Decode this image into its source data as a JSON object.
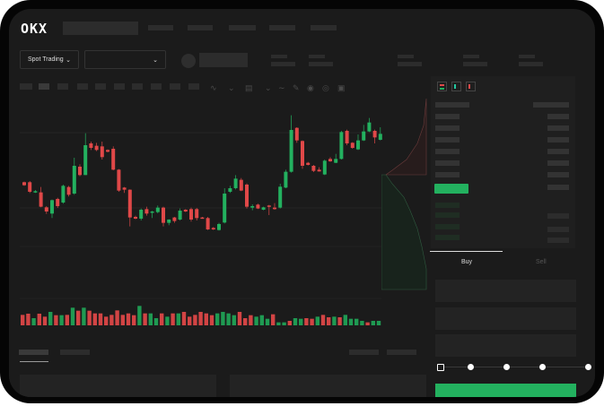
{
  "header": {
    "logo": "OKX"
  },
  "market_selector": {
    "label": "Spot Trading",
    "chevron": "chevron-down-icon",
    "pair_chevron": "chevron-down-icon"
  },
  "order_form": {
    "tabs": [
      "Buy",
      "Sell"
    ],
    "active_tab": "Buy",
    "leverage_slider_value": 0
  },
  "colors": {
    "up": "#23b15f",
    "down": "#e04848",
    "background": "#1b1b1b",
    "buy_button": "#23b15f"
  },
  "toolbar_icons": [
    "indicator-icon",
    "chevron-down-icon",
    "indicator-icon",
    "chevron-down-icon",
    "line-icon",
    "ruler-icon",
    "camera-icon",
    "settings-icon",
    "fullscreen-icon"
  ],
  "orderbook_view_icons": [
    "both-sides-icon",
    "bids-only-icon",
    "asks-only-icon"
  ],
  "chart_data": {
    "type": "candlestick",
    "candles_ochl": [
      [
        45,
        42.5,
        45.5,
        42
      ],
      [
        45,
        37,
        46,
        36
      ],
      [
        36.5,
        37.5,
        38.5,
        36
      ],
      [
        36.5,
        24.5,
        41,
        24
      ],
      [
        24,
        20.5,
        25,
        18.5
      ],
      [
        18.75,
        30,
        30.5,
        15
      ],
      [
        31,
        25,
        32,
        23.5
      ],
      [
        28,
        42,
        43,
        27
      ],
      [
        41,
        34.5,
        42,
        33
      ],
      [
        35.5,
        58.75,
        65.5,
        34.5
      ],
      [
        58,
        51,
        60,
        50
      ],
      [
        51,
        76,
        86,
        51
      ],
      [
        77.5,
        73.75,
        79,
        72
      ],
      [
        75.5,
        72,
        78,
        71
      ],
      [
        75,
        66,
        79,
        64
      ],
      [
        72,
        70.5,
        72.5,
        70
      ],
      [
        73,
        55.5,
        75,
        55
      ],
      [
        55.5,
        38,
        56,
        37
      ],
      [
        40.5,
        38.75,
        41,
        36
      ],
      [
        38.75,
        15.5,
        39,
        8
      ],
      [
        16,
        14.5,
        17,
        14
      ],
      [
        14.5,
        22,
        23,
        13
      ],
      [
        22.5,
        18.75,
        24.5,
        17
      ],
      [
        19.5,
        20.5,
        21,
        15
      ],
      [
        20,
        23.75,
        25.5,
        19
      ],
      [
        23.75,
        11,
        24.5,
        8
      ],
      [
        11,
        13.75,
        14,
        9
      ],
      [
        15.5,
        12.5,
        16,
        11
      ],
      [
        13.75,
        21.25,
        23,
        13
      ],
      [
        22,
        20.5,
        22.5,
        20
      ],
      [
        22.5,
        13.75,
        23.75,
        12
      ],
      [
        22.5,
        15,
        23.5,
        13
      ],
      [
        15.5,
        15,
        16,
        15
      ],
      [
        15,
        5.5,
        16,
        5
      ],
      [
        6.75,
        5.5,
        7.5,
        5
      ],
      [
        5,
        10,
        11,
        4.5
      ],
      [
        11.25,
        35.5,
        40,
        10.5
      ],
      [
        37,
        40,
        42,
        36
      ],
      [
        40,
        48,
        51,
        39
      ],
      [
        47,
        38,
        48.5,
        37.5
      ],
      [
        43,
        24.5,
        44,
        23
      ],
      [
        23.75,
        25,
        26.5,
        21.5
      ],
      [
        26.25,
        23,
        27,
        22.5
      ],
      [
        22,
        24,
        24.5,
        21.5
      ],
      [
        25.5,
        24.5,
        26,
        17.5
      ],
      [
        23.75,
        22.5,
        27.5,
        22
      ],
      [
        23.75,
        41.25,
        43.75,
        23
      ],
      [
        40.5,
        53.75,
        55.5,
        40
      ],
      [
        53.75,
        88.75,
        101,
        53
      ],
      [
        90.5,
        80,
        91,
        78
      ],
      [
        79.5,
        58.75,
        80,
        56.25
      ],
      [
        61.25,
        59.5,
        62,
        59
      ],
      [
        58.75,
        54.5,
        59.5,
        53.5
      ],
      [
        55.5,
        54,
        57.5,
        54
      ],
      [
        51.5,
        63,
        64,
        51
      ],
      [
        64.5,
        62.5,
        66,
        62
      ],
      [
        61.25,
        64.5,
        68.75,
        61
      ],
      [
        64.5,
        87,
        88,
        64
      ],
      [
        88,
        77.5,
        89,
        76
      ],
      [
        78,
        73.75,
        78.5,
        73
      ],
      [
        72.5,
        80,
        85,
        72
      ],
      [
        80,
        87.5,
        93,
        79.5
      ],
      [
        87.5,
        95,
        98.75,
        87
      ],
      [
        88,
        82.5,
        89,
        77.5
      ],
      [
        80.5,
        85.5,
        91,
        80
      ]
    ],
    "volumes": [
      35,
      39,
      24,
      39,
      29,
      45,
      34,
      34,
      35,
      59,
      49,
      59,
      49,
      40,
      40,
      29,
      35,
      50,
      35,
      40,
      34,
      65,
      40,
      40,
      24,
      40,
      29,
      40,
      40,
      45,
      29,
      35,
      45,
      40,
      34,
      40,
      45,
      40,
      34,
      45,
      24,
      34,
      29,
      34,
      22,
      37,
      10,
      10,
      15,
      24,
      22,
      24,
      22,
      29,
      35,
      27,
      29,
      27,
      35,
      22,
      22,
      15,
      10,
      15,
      15
    ],
    "volume_colors": [
      "down",
      "down",
      "up",
      "down",
      "down",
      "up",
      "down",
      "up",
      "down",
      "up",
      "down",
      "up",
      "down",
      "down",
      "down",
      "down",
      "down",
      "down",
      "down",
      "down",
      "down",
      "up",
      "down",
      "up",
      "up",
      "down",
      "up",
      "down",
      "up",
      "down",
      "down",
      "down",
      "down",
      "down",
      "down",
      "up",
      "up",
      "up",
      "up",
      "down",
      "down",
      "down",
      "up",
      "up",
      "up",
      "down",
      "up",
      "up",
      "down",
      "up",
      "up",
      "down",
      "down",
      "up",
      "down",
      "down",
      "up",
      "down",
      "up",
      "up",
      "up",
      "up",
      "down",
      "up",
      "up"
    ]
  }
}
